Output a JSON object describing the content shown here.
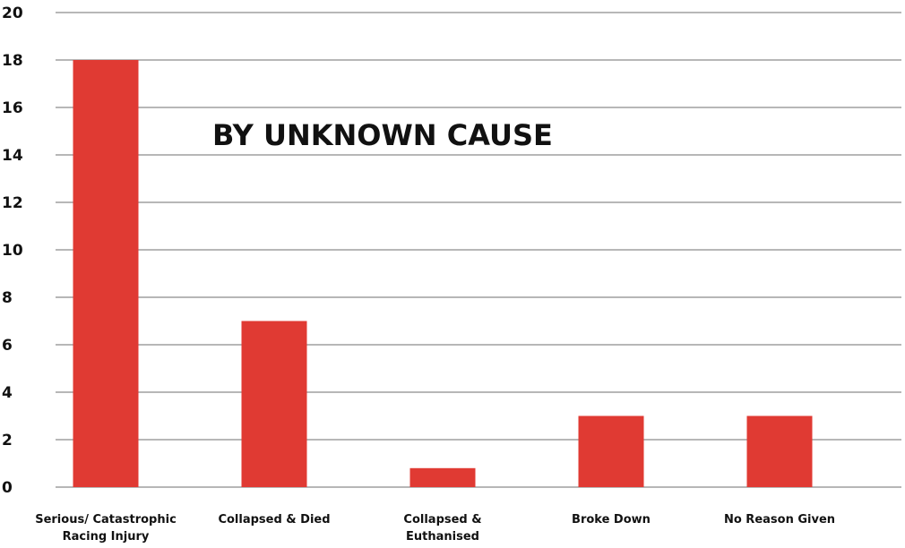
{
  "chart_data": {
    "type": "bar",
    "title": "BY UNKNOWN CAUSE",
    "categories": [
      [
        "Serious/ Catastrophic",
        "Racing Injury"
      ],
      [
        "Collapsed & Died"
      ],
      [
        "Collapsed &",
        "Euthanised"
      ],
      [
        "Broke Down"
      ],
      [
        "No Reason Given"
      ]
    ],
    "values": [
      18,
      7,
      0.8,
      3,
      3
    ],
    "ylim": [
      0,
      20
    ],
    "yticks": [
      0,
      2,
      4,
      6,
      8,
      10,
      12,
      14,
      16,
      18,
      20
    ],
    "xlabel": "",
    "ylabel": "",
    "grid": true,
    "bar_color": "#e03a33",
    "grid_color": "#8c8c8c"
  }
}
